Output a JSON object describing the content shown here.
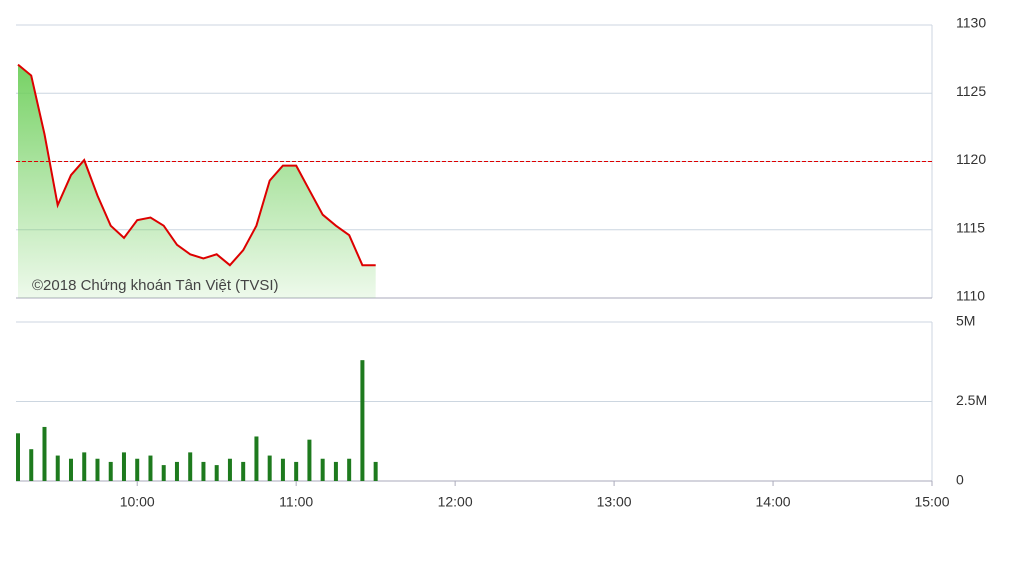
{
  "chart_data": [
    {
      "type": "area",
      "x": [
        "9:15",
        "9:20",
        "9:25",
        "9:30",
        "9:35",
        "9:40",
        "9:45",
        "9:50",
        "9:55",
        "10:00",
        "10:05",
        "10:10",
        "10:15",
        "10:20",
        "10:25",
        "10:30",
        "10:35",
        "10:40",
        "10:45",
        "10:50",
        "10:55",
        "11:00",
        "11:05",
        "11:10",
        "11:15",
        "11:20",
        "11:25",
        "11:30"
      ],
      "values": [
        1127.1,
        1126.3,
        1122,
        1116.8,
        1119,
        1120.1,
        1117.5,
        1115.3,
        1114.4,
        1115.7,
        1115.9,
        1115.3,
        1113.9,
        1113.2,
        1112.9,
        1113.2,
        1112.4,
        1113.5,
        1115.3,
        1118.6,
        1119.7,
        1119.7,
        1117.9,
        1116.1,
        1115.3,
        1114.6,
        1112.4,
        1112.4
      ],
      "color": "#dd0000",
      "fill": "#7ed36b",
      "reference": 1120,
      "xlim": [
        "9:15",
        "15:00"
      ],
      "ylim": [
        1110,
        1130
      ],
      "yticks": [
        1110,
        1115,
        1120,
        1125,
        1130
      ],
      "annotation": "©2018 Chứng khoán Tân Việt (TVSI)"
    },
    {
      "type": "bar",
      "x": [
        "9:15",
        "9:20",
        "9:25",
        "9:30",
        "9:35",
        "9:40",
        "9:45",
        "9:50",
        "9:55",
        "10:00",
        "10:05",
        "10:10",
        "10:15",
        "10:20",
        "10:25",
        "10:30",
        "10:35",
        "10:40",
        "10:45",
        "10:50",
        "10:55",
        "11:00",
        "11:05",
        "11:10",
        "11:15",
        "11:20",
        "11:25",
        "11:30"
      ],
      "values": [
        1500000,
        1000000,
        1700000,
        800000,
        700000,
        900000,
        700000,
        600000,
        900000,
        700000,
        800000,
        500000,
        600000,
        900000,
        600000,
        500000,
        700000,
        600000,
        1400000,
        800000,
        700000,
        600000,
        1300000,
        700000,
        600000,
        700000,
        3800000,
        600000
      ],
      "color": "#1e7a1e",
      "xlim": [
        "9:15",
        "15:00"
      ],
      "xticks": [
        "10:00",
        "11:00",
        "12:00",
        "13:00",
        "14:00",
        "15:00"
      ],
      "ylim": [
        0,
        5000000
      ],
      "yticks": [
        0,
        {
          "value": 2500000,
          "label": "2.5M"
        },
        {
          "value": 5000000,
          "label": "5M"
        }
      ]
    }
  ]
}
